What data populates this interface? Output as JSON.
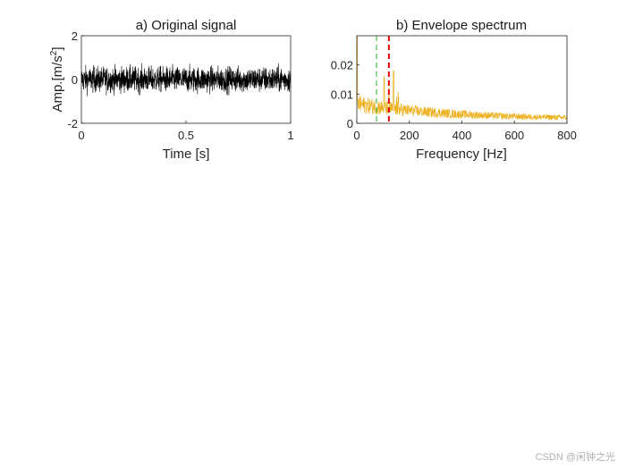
{
  "watermark": "CSDN @闲钟之光",
  "chart_data": [
    {
      "type": "line",
      "title": "a) Original signal",
      "xlabel": "Time [s]",
      "ylabel": "Amp.[m/s",
      "ylabel_sup": "2",
      "ylabel_end": "]",
      "xlim": [
        0,
        1
      ],
      "ylim": [
        -2,
        2
      ],
      "xticks": [
        0,
        0.5,
        1
      ],
      "xtick_labels": [
        "0",
        "0.5",
        "1"
      ],
      "yticks": [
        -2,
        0,
        2
      ],
      "ytick_labels": [
        "-2",
        "0",
        "2"
      ],
      "series": [
        {
          "name": "signal",
          "color": "#000000",
          "description": "broadband noise, approx. amplitude within ±1.4"
        }
      ]
    },
    {
      "type": "line",
      "title": "b) Envelope spectrum",
      "xlabel": "Frequency [Hz]",
      "ylabel": "",
      "xlim": [
        0,
        800
      ],
      "ylim": [
        0,
        0.03
      ],
      "xticks": [
        0,
        200,
        400,
        600,
        800
      ],
      "xtick_labels": [
        "0",
        "200",
        "400",
        "600",
        "800"
      ],
      "yticks": [
        0,
        0.01,
        0.02
      ],
      "ytick_labels": [
        "0",
        "0.01",
        "0.02"
      ],
      "series": [
        {
          "name": "envelope spectrum",
          "color": "#EDB120",
          "description": "approx. 0.006 near 0 Hz decaying to 0.002 at 800 Hz, peaks near 100–150 Hz"
        }
      ],
      "vlines": [
        {
          "x": 75,
          "color": "#4DBE4D",
          "style": "dashed"
        },
        {
          "x": 122,
          "color": "#E00000",
          "style": "dashed"
        }
      ]
    }
  ]
}
